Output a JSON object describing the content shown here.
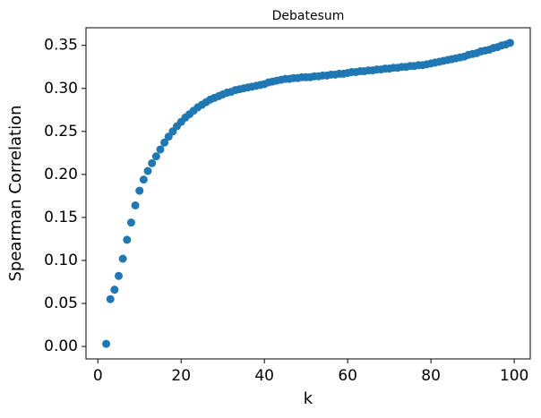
{
  "chart_data": {
    "type": "scatter",
    "title": "Debatesum",
    "x_label": "k",
    "y_label": "Spearman Correlation",
    "series": [
      {
        "color": "#1f77b4",
        "x": [
          2,
          3,
          4,
          5,
          6,
          7,
          8,
          9,
          10,
          11,
          12,
          13,
          14,
          15,
          16,
          17,
          18,
          19,
          20,
          21,
          22,
          23,
          24,
          25,
          26,
          27,
          28,
          29,
          30,
          31,
          32,
          33,
          34,
          35,
          36,
          37,
          38,
          39,
          40,
          41,
          42,
          43,
          44,
          45,
          46,
          47,
          48,
          49,
          50,
          51,
          52,
          53,
          54,
          55,
          56,
          57,
          58,
          59,
          60,
          61,
          62,
          63,
          64,
          65,
          66,
          67,
          68,
          69,
          70,
          71,
          72,
          73,
          74,
          75,
          76,
          77,
          78,
          79,
          80,
          81,
          82,
          83,
          84,
          85,
          86,
          87,
          88,
          89,
          90,
          91,
          92,
          93,
          94,
          95,
          96,
          97,
          98,
          99
        ],
        "values": [
          0.003,
          0.055,
          0.066,
          0.082,
          0.102,
          0.124,
          0.144,
          0.164,
          0.181,
          0.194,
          0.204,
          0.213,
          0.221,
          0.229,
          0.237,
          0.244,
          0.25,
          0.256,
          0.261,
          0.266,
          0.27,
          0.274,
          0.278,
          0.281,
          0.284,
          0.287,
          0.289,
          0.291,
          0.293,
          0.295,
          0.296,
          0.298,
          0.299,
          0.3,
          0.301,
          0.302,
          0.303,
          0.304,
          0.305,
          0.307,
          0.308,
          0.309,
          0.31,
          0.311,
          0.311,
          0.312,
          0.312,
          0.313,
          0.313,
          0.313,
          0.314,
          0.314,
          0.315,
          0.315,
          0.316,
          0.316,
          0.317,
          0.317,
          0.318,
          0.319,
          0.319,
          0.32,
          0.32,
          0.321,
          0.321,
          0.322,
          0.322,
          0.323,
          0.323,
          0.324,
          0.324,
          0.325,
          0.325,
          0.326,
          0.326,
          0.327,
          0.327,
          0.328,
          0.329,
          0.33,
          0.331,
          0.332,
          0.333,
          0.334,
          0.335,
          0.336,
          0.337,
          0.339,
          0.34,
          0.341,
          0.343,
          0.344,
          0.345,
          0.347,
          0.348,
          0.35,
          0.351,
          0.353
        ]
      }
    ],
    "xlim": [
      -2.85,
      103.85
    ],
    "ylim": [
      -0.0145,
      0.3705
    ],
    "xticks": [
      0,
      20,
      40,
      60,
      80,
      100
    ],
    "yticks": [
      {
        "value": 0,
        "label": "0.00"
      },
      {
        "value": 0.05,
        "label": "0.05"
      },
      {
        "value": 0.1,
        "label": "0.10"
      },
      {
        "value": 0.15,
        "label": "0.15"
      },
      {
        "value": 0.2,
        "label": "0.20"
      },
      {
        "value": 0.25,
        "label": "0.25"
      },
      {
        "value": 0.3,
        "label": "0.30"
      },
      {
        "value": 0.35,
        "label": "0.35"
      }
    ],
    "grid": false
  }
}
